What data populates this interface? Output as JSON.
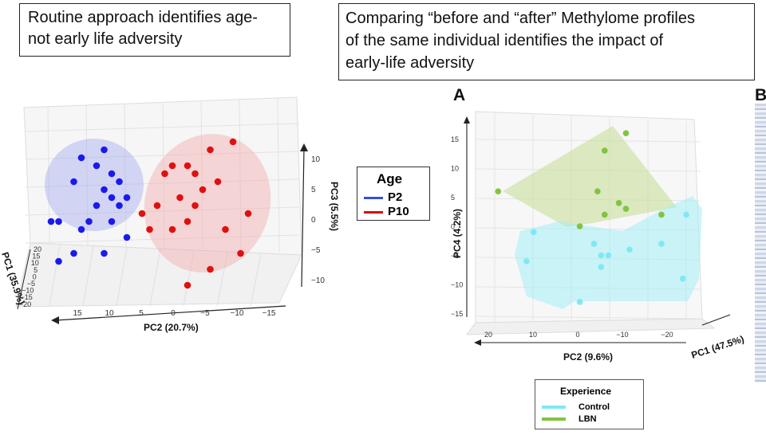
{
  "captions": {
    "left": "Routine approach identifies age-\n not early life adversity",
    "right": "Comparing “before and “after” Methylome profiles\nof the same individual identifies the impact of\nearly-life adversity"
  },
  "panel_letters": {
    "a": "A",
    "b": "B"
  },
  "colors": {
    "p2": "#1a1aee",
    "p10": "#e01010",
    "control": "#7fe8f6",
    "lbn": "#82c341"
  },
  "chart_data": [
    {
      "type": "scatter",
      "projection": "3d",
      "xlabel": "PC2 (20.7%)",
      "ylabel": "PC3 (5.5%)",
      "zlabel": "PC1 (35.9%)",
      "x_ticks": [
        "15",
        "10",
        "5",
        "0",
        "−5",
        "−10",
        "−15"
      ],
      "y_ticks": [
        "10",
        "5",
        "0",
        "−5",
        "−10"
      ],
      "z_ticks": [
        "20",
        "15",
        "10",
        "5",
        "0",
        "−5",
        "−10",
        "−15",
        "−20"
      ],
      "legend": {
        "title": "Age",
        "entries": [
          "P2",
          "P10"
        ],
        "placement": "right"
      },
      "series": [
        {
          "name": "P2",
          "color": "#1a1aee",
          "points": [
            [
              12,
              7
            ],
            [
              9,
              8
            ],
            [
              10,
              6
            ],
            [
              8,
              5
            ],
            [
              13,
              4
            ],
            [
              7,
              4
            ],
            [
              9,
              3
            ],
            [
              6,
              2
            ],
            [
              8,
              2
            ],
            [
              10,
              1
            ],
            [
              7,
              1
            ],
            [
              15,
              -1
            ],
            [
              16,
              -1
            ],
            [
              11,
              -1
            ],
            [
              8,
              -1
            ],
            [
              12,
              -2
            ],
            [
              6,
              -3
            ],
            [
              13,
              -5
            ],
            [
              9,
              -5
            ],
            [
              15,
              -6
            ]
          ]
        },
        {
          "name": "P10",
          "color": "#e01010",
          "points": [
            [
              -5,
              8
            ],
            [
              -8,
              9
            ],
            [
              -2,
              6
            ],
            [
              0,
              6
            ],
            [
              -3,
              5
            ],
            [
              1,
              5
            ],
            [
              -6,
              4
            ],
            [
              -4,
              3
            ],
            [
              -1,
              2
            ],
            [
              2,
              1
            ],
            [
              -3,
              1
            ],
            [
              4,
              0
            ],
            [
              -2,
              -1
            ],
            [
              0,
              -2
            ],
            [
              3,
              -2
            ],
            [
              -7,
              -2
            ],
            [
              -9,
              -5
            ],
            [
              -5,
              -7
            ],
            [
              -2,
              -9
            ],
            [
              -10,
              0
            ]
          ]
        }
      ]
    },
    {
      "type": "scatter",
      "projection": "3d",
      "xlabel": "PC2 (9.6%)",
      "ylabel": "PC4 (4.2%)",
      "zlabel": "PC1 (47.5%)",
      "x_ticks": [
        "20",
        "10",
        "0",
        "−10",
        "−20"
      ],
      "y_ticks": [
        "15",
        "10",
        "5",
        "0",
        "−5",
        "−10",
        "−15"
      ],
      "legend": {
        "title": "Experience",
        "entries": [
          "Control",
          "LBN"
        ],
        "placement": "bottom"
      },
      "series": [
        {
          "name": "Control",
          "color": "#7fe8f6",
          "points": [
            [
              16,
              -1
            ],
            [
              18,
              -6
            ],
            [
              -1,
              -3
            ],
            [
              -3,
              -5
            ],
            [
              -5,
              -5
            ],
            [
              -3,
              -7
            ],
            [
              -11,
              -4
            ],
            [
              -20,
              -3
            ],
            [
              -27,
              2
            ],
            [
              -26,
              -9
            ],
            [
              3,
              -13
            ]
          ]
        },
        {
          "name": "LBN",
          "color": "#82c341",
          "points": [
            [
              -10,
              16
            ],
            [
              -4,
              13
            ],
            [
              26,
              6
            ],
            [
              -2,
              6
            ],
            [
              -8,
              4
            ],
            [
              -10,
              3
            ],
            [
              -4,
              2
            ],
            [
              -20,
              2
            ],
            [
              3,
              0
            ]
          ]
        }
      ]
    }
  ]
}
